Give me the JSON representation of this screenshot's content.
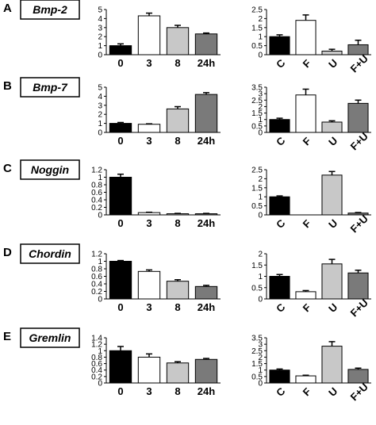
{
  "figure": {
    "panels": [
      {
        "letter": "A",
        "gene": "Bmp-2"
      },
      {
        "letter": "B",
        "gene": "Bmp-7"
      },
      {
        "letter": "C",
        "gene": "Noggin"
      },
      {
        "letter": "D",
        "gene": "Chordin"
      },
      {
        "letter": "E",
        "gene": "Gremlin"
      }
    ]
  },
  "colors": {
    "black": "#000000",
    "white": "#ffffff",
    "light_gray": "#c8c8c8",
    "dark_gray": "#7a7a7a"
  },
  "chart_data": [
    {
      "panel": "A",
      "gene": "Bmp-2",
      "type": "bar",
      "categories": [
        "0",
        "3",
        "8",
        "24h"
      ],
      "values": [
        1.0,
        4.3,
        3.0,
        2.3
      ],
      "errors": [
        0.2,
        0.3,
        0.25,
        0.1
      ],
      "yticks": [
        "0",
        "1",
        "2",
        "3",
        "4",
        "5"
      ],
      "ylim": [
        0,
        5
      ],
      "colors": [
        "#000000",
        "#ffffff",
        "#c8c8c8",
        "#7a7a7a"
      ]
    },
    {
      "panel": "A",
      "gene": "Bmp-2",
      "type": "bar",
      "categories": [
        "C",
        "F",
        "U",
        "F+U"
      ],
      "values": [
        1.0,
        1.9,
        0.2,
        0.55
      ],
      "errors": [
        0.1,
        0.3,
        0.1,
        0.25
      ],
      "yticks": [
        "0",
        "0.5",
        "1",
        "1.5",
        "2",
        "2.5"
      ],
      "ylim": [
        0,
        2.5
      ],
      "colors": [
        "#000000",
        "#ffffff",
        "#c8c8c8",
        "#7a7a7a"
      ]
    },
    {
      "panel": "B",
      "gene": "Bmp-7",
      "type": "bar",
      "categories": [
        "0",
        "3",
        "8",
        "24h"
      ],
      "values": [
        1.0,
        0.9,
        2.6,
        4.2
      ],
      "errors": [
        0.1,
        0.05,
        0.25,
        0.2
      ],
      "yticks": [
        "0",
        "1",
        "2",
        "3",
        "4",
        "5"
      ],
      "ylim": [
        0,
        5
      ],
      "colors": [
        "#000000",
        "#ffffff",
        "#c8c8c8",
        "#7a7a7a"
      ]
    },
    {
      "panel": "B",
      "gene": "Bmp-7",
      "type": "bar",
      "categories": [
        "C",
        "F",
        "U",
        "F+U"
      ],
      "values": [
        1.0,
        2.9,
        0.8,
        2.25
      ],
      "errors": [
        0.1,
        0.45,
        0.1,
        0.25
      ],
      "yticks": [
        "0",
        "0.5",
        "1",
        "1.5",
        "2",
        "2.5",
        "3",
        "3.5"
      ],
      "ylim": [
        0,
        3.5
      ],
      "colors": [
        "#000000",
        "#ffffff",
        "#c8c8c8",
        "#7a7a7a"
      ]
    },
    {
      "panel": "C",
      "gene": "Noggin",
      "type": "bar",
      "categories": [
        "0",
        "3",
        "8",
        "24h"
      ],
      "values": [
        1.0,
        0.06,
        0.03,
        0.03
      ],
      "errors": [
        0.08,
        0.01,
        0.01,
        0.01
      ],
      "yticks": [
        "0",
        "0.2",
        "0.4",
        "0.6",
        "0.8",
        "1",
        "1.2"
      ],
      "ylim": [
        0,
        1.2
      ],
      "colors": [
        "#000000",
        "#ffffff",
        "#c8c8c8",
        "#7a7a7a"
      ]
    },
    {
      "panel": "C",
      "gene": "Noggin",
      "type": "bar",
      "categories": [
        "C",
        "F",
        "U",
        "F+U"
      ],
      "values": [
        1.0,
        0.0,
        2.2,
        0.1
      ],
      "errors": [
        0.05,
        0.0,
        0.2,
        0.03
      ],
      "yticks": [
        "0",
        "0.5",
        "1",
        "1.5",
        "2",
        "2.5"
      ],
      "ylim": [
        0,
        2.5
      ],
      "colors": [
        "#000000",
        "#ffffff",
        "#c8c8c8",
        "#7a7a7a"
      ]
    },
    {
      "panel": "D",
      "gene": "Chordin",
      "type": "bar",
      "categories": [
        "0",
        "3",
        "8",
        "24h"
      ],
      "values": [
        1.0,
        0.73,
        0.47,
        0.33
      ],
      "errors": [
        0.02,
        0.04,
        0.04,
        0.03
      ],
      "yticks": [
        "0",
        "0.2",
        "0.4",
        "0.6",
        "0.8",
        "1",
        "1.2"
      ],
      "ylim": [
        0,
        1.2
      ],
      "colors": [
        "#000000",
        "#ffffff",
        "#c8c8c8",
        "#7a7a7a"
      ]
    },
    {
      "panel": "D",
      "gene": "Chordin",
      "type": "bar",
      "categories": [
        "C",
        "F",
        "U",
        "F+U"
      ],
      "values": [
        1.0,
        0.32,
        1.55,
        1.15
      ],
      "errors": [
        0.08,
        0.05,
        0.2,
        0.12
      ],
      "yticks": [
        "0",
        "0.5",
        "1",
        "1.5",
        "2"
      ],
      "ylim": [
        0,
        2
      ],
      "colors": [
        "#000000",
        "#ffffff",
        "#c8c8c8",
        "#7a7a7a"
      ]
    },
    {
      "panel": "E",
      "gene": "Gremlin",
      "type": "bar",
      "categories": [
        "0",
        "3",
        "8",
        "24h"
      ],
      "values": [
        1.0,
        0.8,
        0.62,
        0.73
      ],
      "errors": [
        0.13,
        0.1,
        0.04,
        0.03
      ],
      "yticks": [
        "0",
        "0.2",
        "0.4",
        "0.6",
        "0.8",
        "1",
        "1.2",
        "1.4"
      ],
      "ylim": [
        0,
        1.4
      ],
      "colors": [
        "#000000",
        "#ffffff",
        "#c8c8c8",
        "#7a7a7a"
      ]
    },
    {
      "panel": "E",
      "gene": "Gremlin",
      "type": "bar",
      "categories": [
        "C",
        "F",
        "U",
        "F+U"
      ],
      "values": [
        1.0,
        0.55,
        2.85,
        1.05
      ],
      "errors": [
        0.08,
        0.05,
        0.35,
        0.1
      ],
      "yticks": [
        "0",
        "0.5",
        "1",
        "1.5",
        "2",
        "2.5",
        "3",
        "3.5"
      ],
      "ylim": [
        0,
        3.5
      ],
      "colors": [
        "#000000",
        "#ffffff",
        "#c8c8c8",
        "#7a7a7a"
      ]
    }
  ]
}
